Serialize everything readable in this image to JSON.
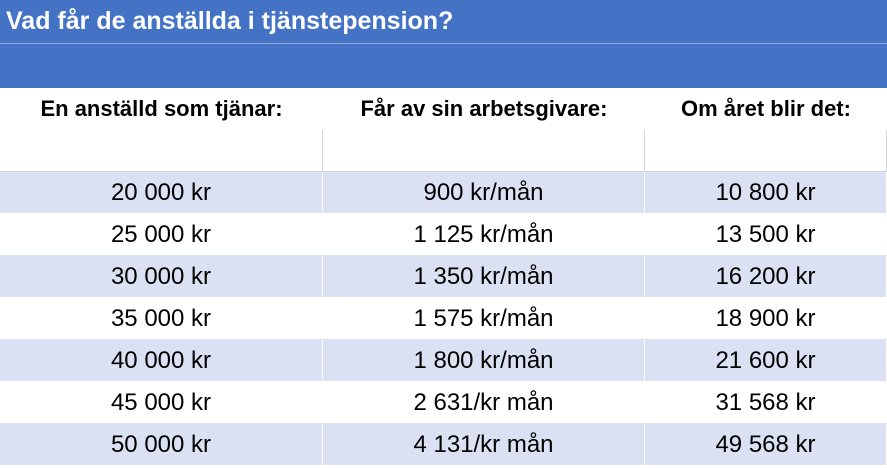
{
  "title": "Vad får de anställda i tjänstepension?",
  "headers": [
    "En anställd som tjänar:",
    "Får av sin arbetsgivare:",
    "Om året blir det:"
  ],
  "rows": [
    [
      "20 000 kr",
      "900 kr/mån",
      "10 800 kr"
    ],
    [
      "25 000 kr",
      "1 125 kr/mån",
      "13 500 kr"
    ],
    [
      "30 000 kr",
      "1 350 kr/mån",
      "16 200 kr"
    ],
    [
      "35 000 kr",
      "1 575 kr/mån",
      "18 900 kr"
    ],
    [
      "40 000 kr",
      "1 800 kr/mån",
      "21 600 kr"
    ],
    [
      "45 000 kr",
      "2 631/kr mån",
      "31 568 kr"
    ],
    [
      "50 000 kr",
      "4 131/kr mån",
      "49 568 kr"
    ]
  ]
}
